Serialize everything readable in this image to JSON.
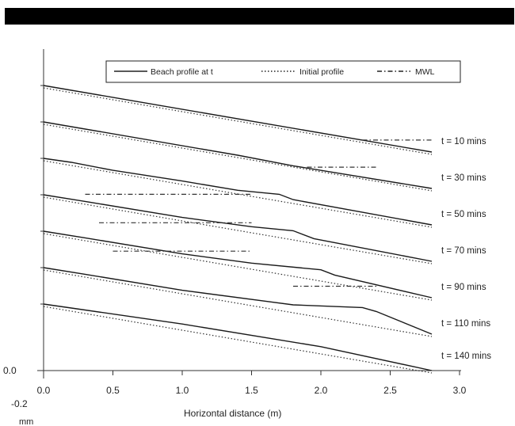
{
  "chart_data": {
    "type": "line",
    "xlabel": "Horizontal distance (m)",
    "ylabel": "",
    "xlim": [
      0,
      3.0
    ],
    "x_ticks": [
      "0.0",
      "0.5",
      "1.0",
      "1.5",
      "2.0",
      "2.5",
      "3.0"
    ],
    "y_tick_zero": "0.0",
    "y_annotation": [
      "-0.2",
      "mm"
    ],
    "legend": {
      "position": "top",
      "entries": [
        {
          "name": "Beach profile at t",
          "style": "solid"
        },
        {
          "name": "Initial profile",
          "style": "dotted"
        },
        {
          "name": "MWL",
          "style": "dashdot"
        }
      ]
    },
    "panels": [
      {
        "label": "t = 10 mins",
        "offset": 6,
        "beach": [
          [
            0,
            0.5
          ],
          [
            2.8,
            0
          ]
        ],
        "mwl": [
          [
            2.3,
            0.09
          ],
          [
            2.8,
            0.09
          ]
        ]
      },
      {
        "label": "t = 30 mins",
        "offset": 5,
        "beach": [
          [
            0,
            0.5
          ],
          [
            1.4,
            0.25
          ],
          [
            1.8,
            0.17
          ],
          [
            2.8,
            0
          ]
        ],
        "mwl": [
          [
            1.9,
            0.16
          ],
          [
            2.4,
            0.16
          ]
        ]
      },
      {
        "label": "t = 50 mins",
        "offset": 4,
        "beach": [
          [
            0,
            0.5
          ],
          [
            0.2,
            0.47
          ],
          [
            0.5,
            0.41
          ],
          [
            1.0,
            0.33
          ],
          [
            1.4,
            0.26
          ],
          [
            1.7,
            0.23
          ],
          [
            1.8,
            0.19
          ],
          [
            2.8,
            0
          ]
        ],
        "mwl": [
          [
            0.3,
            0.23
          ],
          [
            1.5,
            0.23
          ]
        ]
      },
      {
        "label": "t = 70 mins",
        "offset": 3,
        "beach": [
          [
            0,
            0.5
          ],
          [
            0.3,
            0.45
          ],
          [
            1.0,
            0.33
          ],
          [
            1.5,
            0.26
          ],
          [
            1.8,
            0.23
          ],
          [
            1.95,
            0.17
          ],
          [
            2.8,
            0
          ]
        ],
        "mwl": [
          [
            0.4,
            0.29
          ],
          [
            1.5,
            0.29
          ]
        ]
      },
      {
        "label": "t = 90 mins",
        "offset": 2,
        "beach": [
          [
            0,
            0.5
          ],
          [
            0.3,
            0.45
          ],
          [
            1.0,
            0.33
          ],
          [
            1.5,
            0.26
          ],
          [
            2.0,
            0.21
          ],
          [
            2.1,
            0.17
          ],
          [
            2.8,
            0
          ]
        ],
        "mwl": [
          [
            0.5,
            0.35
          ],
          [
            1.5,
            0.35
          ]
        ]
      },
      {
        "label": "t = 110 mins",
        "offset": 1,
        "beach": [
          [
            0,
            0.5
          ],
          [
            0.3,
            0.45
          ],
          [
            1.0,
            0.33
          ],
          [
            1.8,
            0.22
          ],
          [
            2.3,
            0.2
          ],
          [
            2.4,
            0.17
          ],
          [
            2.8,
            0
          ]
        ],
        "mwl": [
          [
            1.8,
            0.36
          ],
          [
            2.4,
            0.36
          ]
        ]
      },
      {
        "label": "t = 140 mins",
        "offset": 0,
        "beach": [
          [
            0,
            0.5
          ],
          [
            0.2,
            0.47
          ],
          [
            1.0,
            0.35
          ],
          [
            2.0,
            0.18
          ],
          [
            2.8,
            0
          ]
        ],
        "mwl": []
      }
    ]
  }
}
